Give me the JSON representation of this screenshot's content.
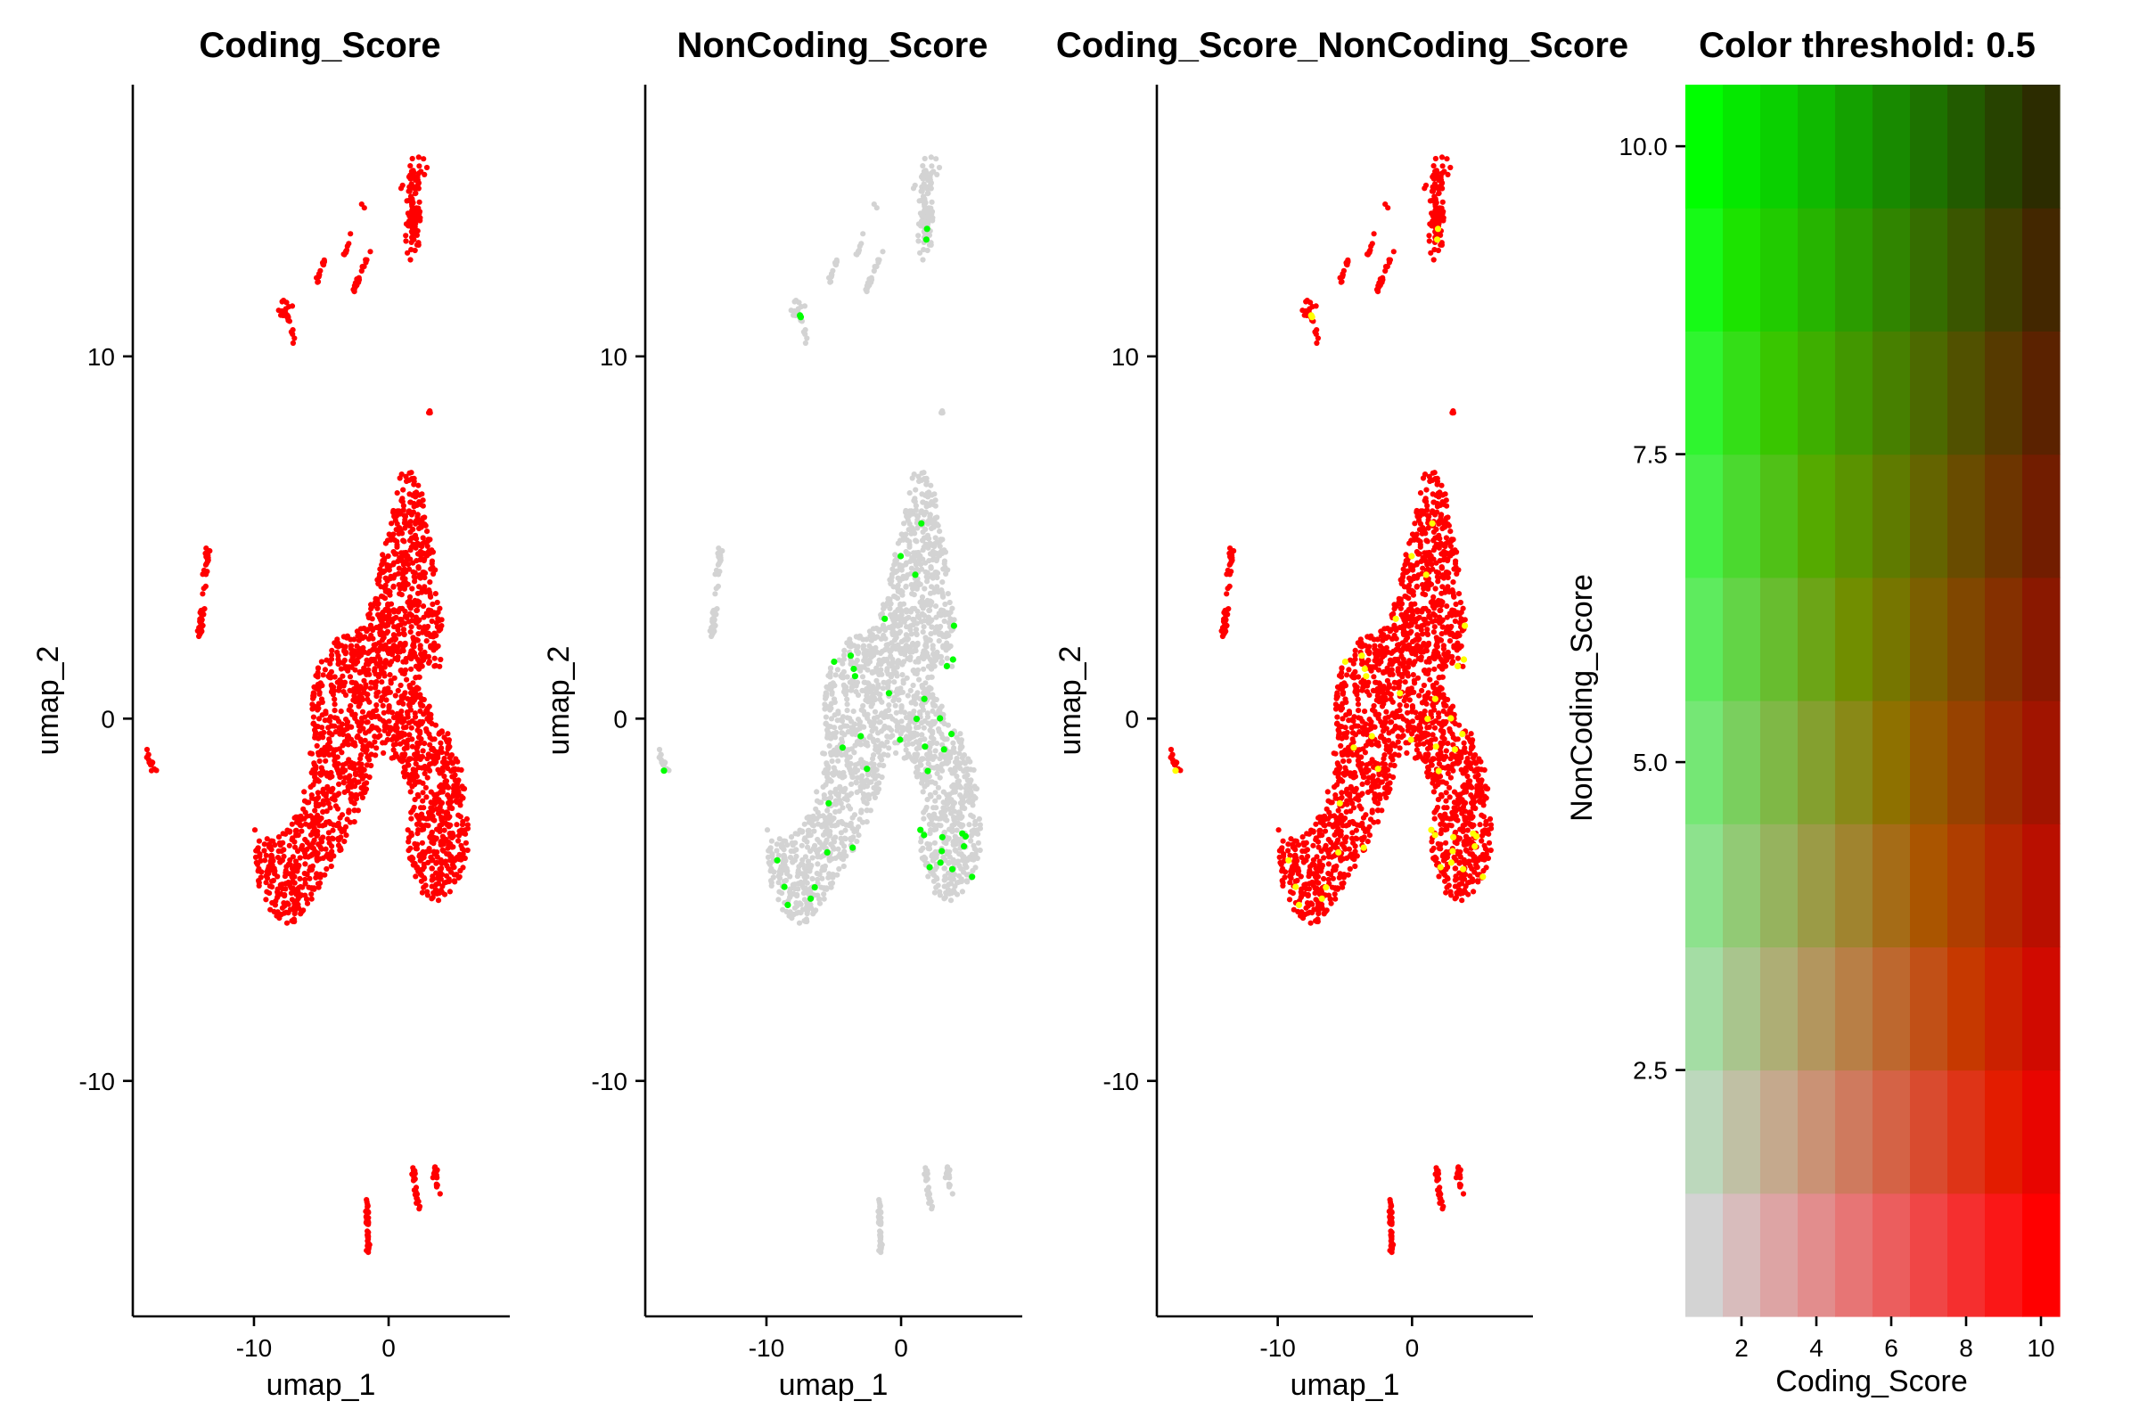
{
  "chart_data": [
    {
      "type": "scatter",
      "title": "Coding_Score",
      "xlabel": "umap_1",
      "ylabel": "umap_2",
      "xlim": [
        -19,
        9
      ],
      "ylim": [
        -16.5,
        17.5
      ],
      "x_ticks": [
        "-10",
        "0"
      ],
      "x_tick_values": [
        -10,
        0
      ],
      "y_ticks": [
        "-10",
        "0",
        "10"
      ],
      "y_tick_values": [
        -10,
        0,
        10
      ],
      "point_color": "#ff0000",
      "highlight_color": "#ffff00",
      "highlight_share": 0,
      "grid": false
    },
    {
      "type": "scatter",
      "title": "NonCoding_Score",
      "xlabel": "umap_1",
      "ylabel": "umap_2",
      "xlim": [
        -19,
        9
      ],
      "ylim": [
        -16.5,
        17.5
      ],
      "x_ticks": [
        "-10",
        "0"
      ],
      "x_tick_values": [
        -10,
        0
      ],
      "y_ticks": [
        "-10",
        "0",
        "10"
      ],
      "y_tick_values": [
        -10,
        0,
        10
      ],
      "point_color": "#d3d3d3",
      "highlight_color": "#00ff00",
      "highlight_share": 0.004,
      "grid": false
    },
    {
      "type": "scatter",
      "title": "Coding_Score_NonCoding_Score",
      "xlabel": "umap_1",
      "ylabel": "umap_2",
      "xlim": [
        -19,
        9
      ],
      "ylim": [
        -16.5,
        17.5
      ],
      "x_ticks": [
        "-10",
        "0"
      ],
      "x_tick_values": [
        -10,
        0
      ],
      "y_ticks": [
        "-10",
        "0",
        "10"
      ],
      "y_tick_values": [
        -10,
        0,
        10
      ],
      "point_color": "#ff0000",
      "highlight_color": "#ffff00",
      "highlight_share": 0.004,
      "grid": false
    },
    {
      "type": "heatmap",
      "title": "Color threshold: 0.5",
      "xlabel": "Coding_Score",
      "ylabel": "NonCoding_Score",
      "x": [
        1,
        2,
        3,
        4,
        5,
        6,
        7,
        8,
        9,
        10
      ],
      "y": [
        1,
        2,
        3,
        4,
        5,
        6,
        7,
        8,
        9,
        10
      ],
      "xlim": [
        0.5,
        10.5
      ],
      "ylim": [
        0.5,
        10.5
      ],
      "x_ticks": [
        "2",
        "4",
        "6",
        "8",
        "10"
      ],
      "x_tick_values": [
        2,
        4,
        6,
        8,
        10
      ],
      "y_ticks": [
        "2.5",
        "5.0",
        "7.5",
        "10.0"
      ],
      "y_tick_values": [
        2.5,
        5.0,
        7.5,
        10.0
      ],
      "color_low": "#d3d3d3",
      "color_x": "#ff0000",
      "color_y": "#00ff00"
    }
  ]
}
